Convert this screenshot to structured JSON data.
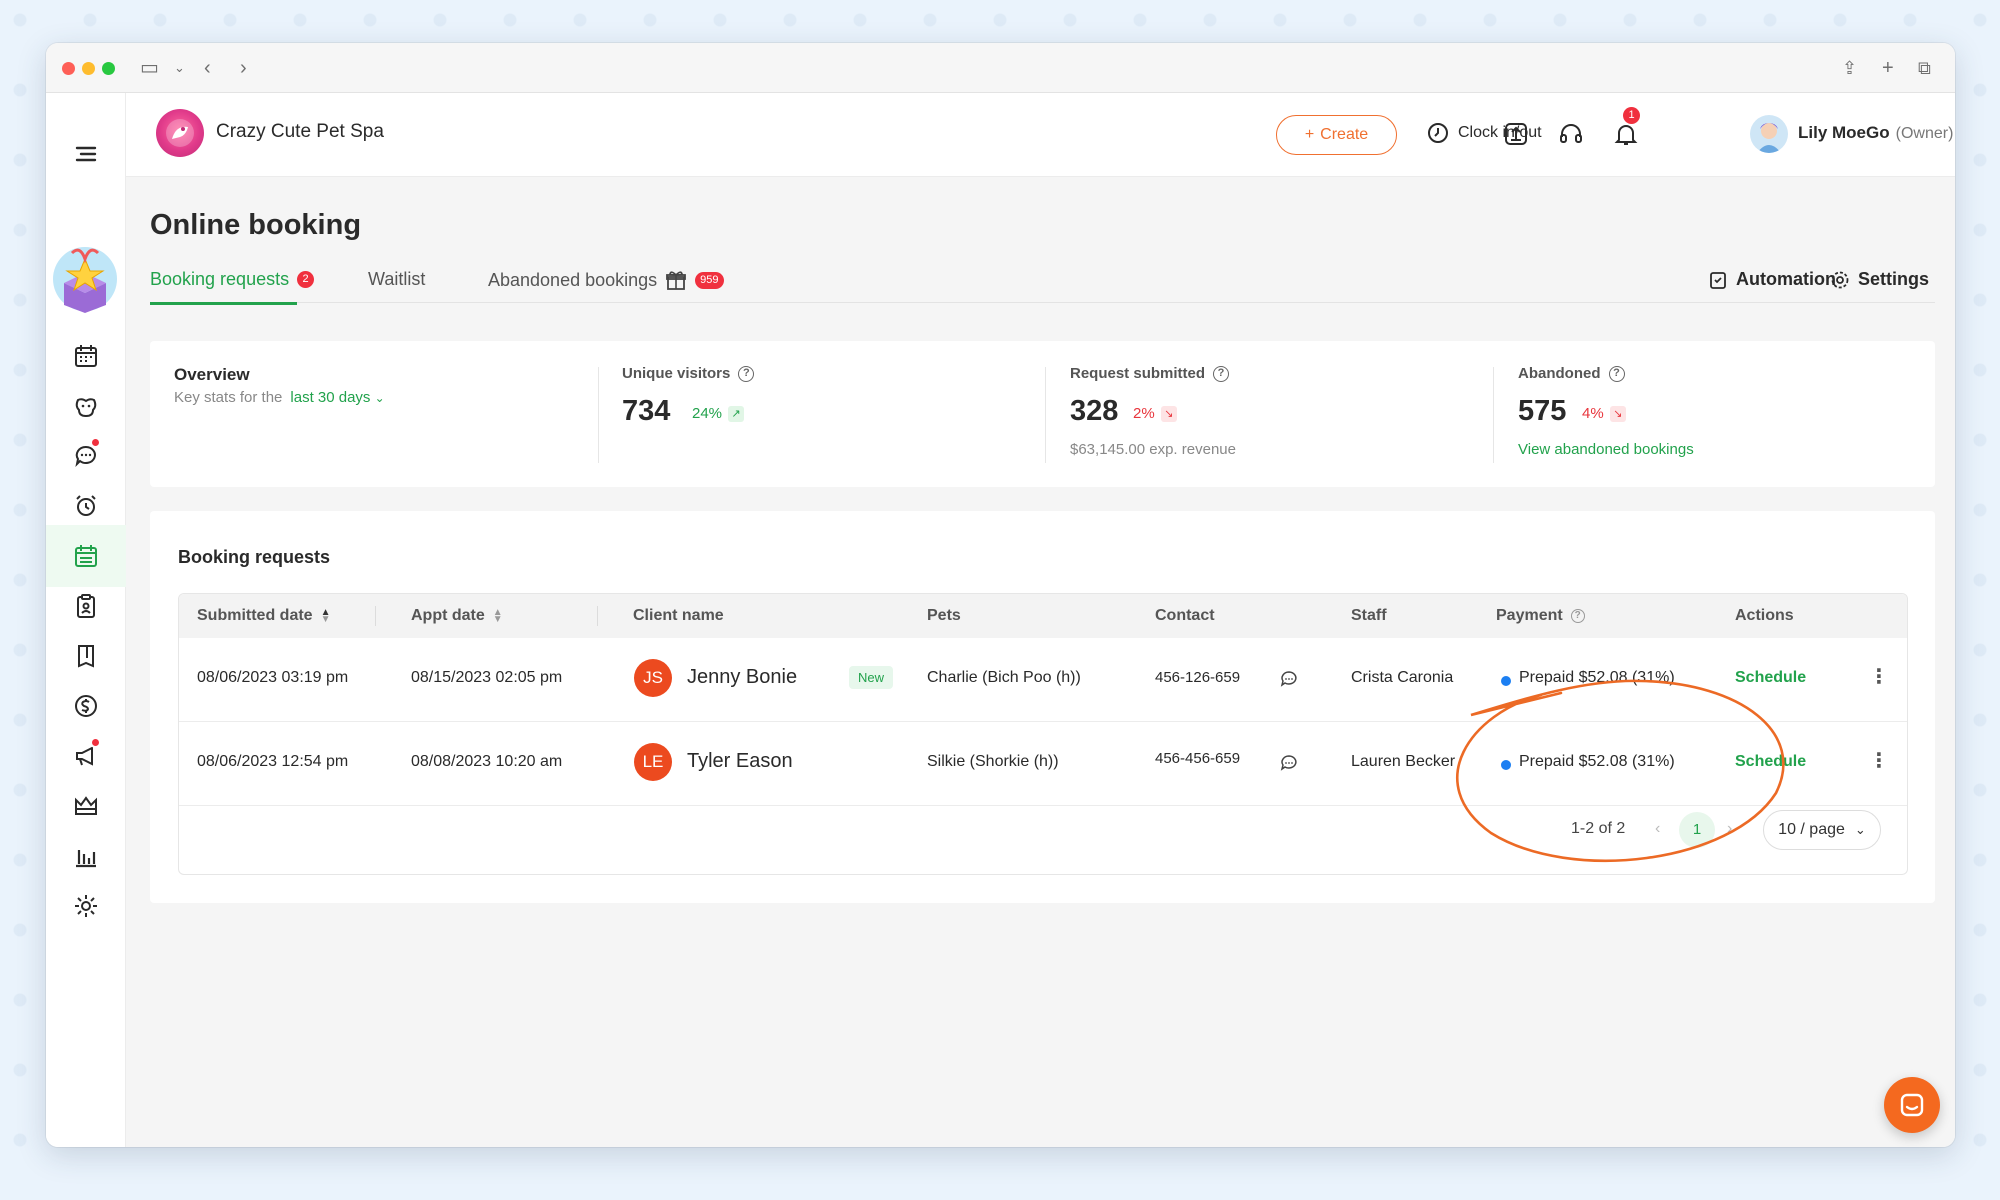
{
  "business": {
    "name": "Crazy Cute Pet Spa"
  },
  "topbar": {
    "create_label": "Create",
    "clock_label": "Clock in/out",
    "notifications_count": "1",
    "user_name": "Lily MoeGo",
    "user_role": "(Owner)"
  },
  "page": {
    "title": "Online booking"
  },
  "tabs": {
    "booking_requests": {
      "label": "Booking requests",
      "count": "2"
    },
    "waitlist": {
      "label": "Waitlist"
    },
    "abandoned": {
      "label": "Abandoned bookings",
      "count": "959"
    },
    "automation_label": "Automation",
    "settings_label": "Settings"
  },
  "overview": {
    "title": "Overview",
    "subtitle": "Key stats for the",
    "range": "last 30 days",
    "stats": [
      {
        "label": "Unique visitors",
        "value": "734",
        "change": "24%",
        "direction": "up",
        "extra": ""
      },
      {
        "label": "Request submitted",
        "value": "328",
        "change": "2%",
        "direction": "down",
        "extra": "$63,145.00 exp. revenue"
      },
      {
        "label": "Abandoned",
        "value": "575",
        "change": "4%",
        "direction": "down",
        "extra": "View abandoned bookings"
      }
    ]
  },
  "requests": {
    "title": "Booking requests",
    "columns": {
      "submitted": "Submitted date",
      "appt": "Appt date",
      "client": "Client name",
      "pets": "Pets",
      "contact": "Contact",
      "staff": "Staff",
      "payment": "Payment",
      "actions": "Actions"
    },
    "rows": [
      {
        "submitted": "08/06/2023 03:19 pm",
        "appt": "08/15/2023 02:05 pm",
        "initials": "JS",
        "client": "Jenny Bonie",
        "tag": "New",
        "pets": "Charlie (Bich Poo (h))",
        "contact": "456-126-659",
        "staff": "Crista Caronia",
        "payment": "Prepaid $52.08 (31%)",
        "action": "Schedule"
      },
      {
        "submitted": "08/06/2023 12:54 pm",
        "appt": "08/08/2023 10:20 am",
        "initials": "LE",
        "client": "Tyler Eason",
        "tag": "",
        "pets": "Silkie (Shorkie (h))",
        "contact": "456-456-659",
        "staff": "Lauren Becker",
        "payment": "Prepaid $52.08 (31%)",
        "action": "Schedule"
      }
    ],
    "pagination": {
      "range": "1-2 of 2",
      "current_page": "1",
      "page_size": "10 / page"
    }
  },
  "colors": {
    "accent": "#22a24c",
    "create": "#f07030",
    "alert": "#f0303e",
    "payment_dot": "#1c7ff2",
    "annotation": "#ec6a25"
  },
  "icons": [
    "menu-icon",
    "calendar-icon",
    "dog-icon",
    "message-icon",
    "alarm-icon",
    "booking-icon",
    "clipboard-icon",
    "book-icon",
    "dollar-icon",
    "megaphone-icon",
    "crown-icon",
    "chart-icon",
    "gear-icon",
    "clock-icon",
    "upload-icon",
    "headset-icon",
    "bell-icon",
    "chat-icon"
  ]
}
